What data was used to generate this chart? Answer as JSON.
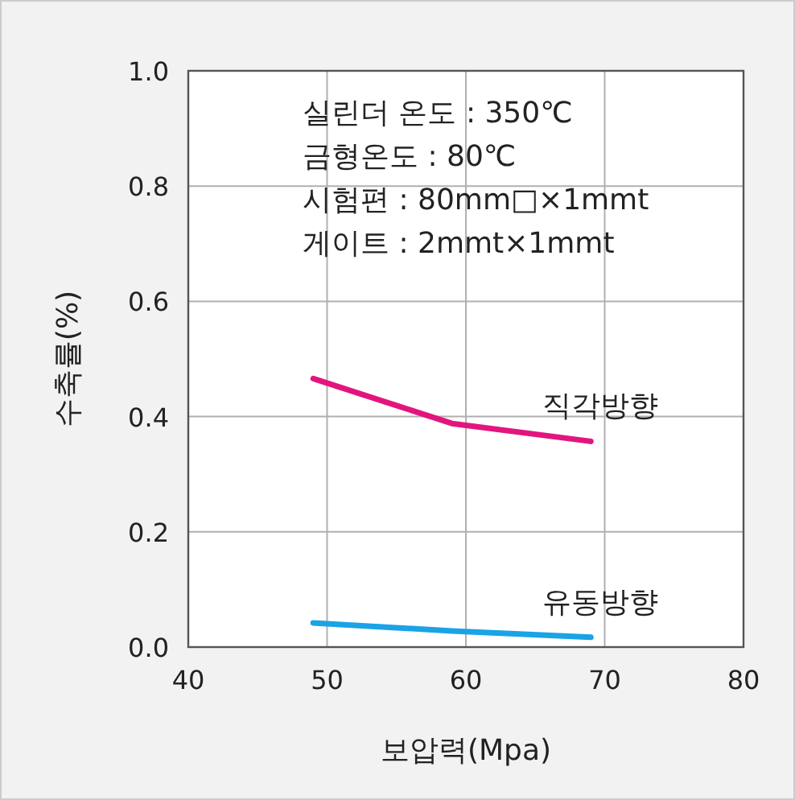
{
  "chart_data": {
    "type": "line",
    "xlabel": "보압력(Mpa)",
    "ylabel": "수축률(%)",
    "x": [
      49,
      59,
      69
    ],
    "series": [
      {
        "name": "직각방향",
        "color": "#e2157f",
        "values": [
          0.466,
          0.388,
          0.357
        ]
      },
      {
        "name": "유동방향",
        "color": "#1aa3e6",
        "values": [
          0.042,
          0.028,
          0.017
        ]
      }
    ],
    "xlim": [
      40,
      80
    ],
    "ylim": [
      0,
      1
    ],
    "xticks": [
      40,
      50,
      60,
      70,
      80
    ],
    "yticks": [
      {
        "value": 0,
        "label": "0.0"
      },
      {
        "value": 0.2,
        "label": "0.2"
      },
      {
        "value": 0.4,
        "label": "0.4"
      },
      {
        "value": 0.6,
        "label": "0.6"
      },
      {
        "value": 0.8,
        "label": "0.8"
      },
      {
        "value": 1,
        "label": "1.0"
      }
    ],
    "grid": true,
    "marker": "none",
    "line_style": "solid",
    "annotations": [
      "실린더 온도 : 350℃",
      "금형온도 : 80℃",
      "시험편 : 80mm□×1mmt",
      "게이트 : 2mmt×1mmt"
    ]
  }
}
